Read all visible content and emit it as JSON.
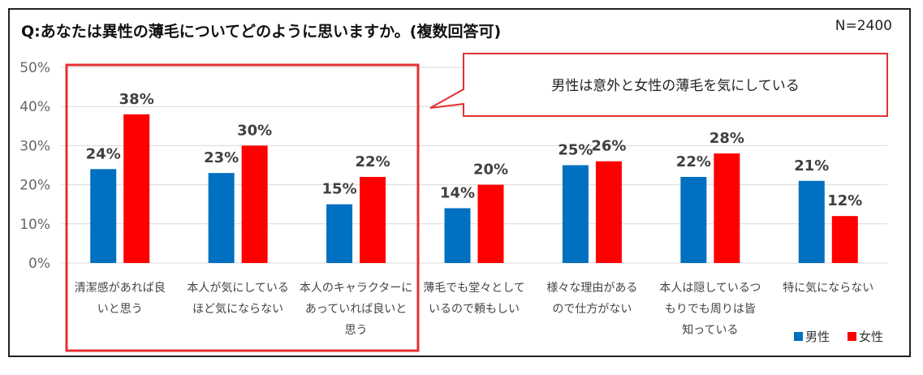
{
  "header": {
    "title": "Q:あなたは異性の薄毛についてどのように思いますか。(複数回答可)",
    "sample_size": "N=2400"
  },
  "callout": {
    "text": "男性は意外と女性の薄毛を気にしている"
  },
  "colors": {
    "male": "#0070C0",
    "female": "#FF0000",
    "highlight_box": "#E53030",
    "grid": "#d9d9d9"
  },
  "chart_data": {
    "type": "bar",
    "ylim": [
      0,
      50
    ],
    "yticks": [
      "0%",
      "10%",
      "20%",
      "30%",
      "40%",
      "50%"
    ],
    "grid": true,
    "legend_position": "bottom-right",
    "categories": [
      [
        "清潔感があれば良",
        "いと思う"
      ],
      [
        "本人が気にしている",
        "ほど気にならない"
      ],
      [
        "本人のキャラクターに",
        "あっていれば良いと",
        "思う"
      ],
      [
        "薄毛でも堂々として",
        "いるので頼もしい"
      ],
      [
        "様々な理由がある",
        "ので仕方がない"
      ],
      [
        "本人は隠しているつ",
        "もりでも周りは皆",
        "知っている"
      ],
      [
        "特に気にならない"
      ]
    ],
    "series": [
      {
        "name": "男性",
        "values": [
          24,
          23,
          15,
          14,
          25,
          22,
          21
        ],
        "labels": [
          "24%",
          "23%",
          "15%",
          "14%",
          "25%",
          "22%",
          "21%"
        ]
      },
      {
        "name": "女性",
        "values": [
          38,
          30,
          22,
          20,
          26,
          28,
          12
        ],
        "labels": [
          "38%",
          "30%",
          "22%",
          "20%",
          "26%",
          "28%",
          "12%"
        ]
      }
    ]
  }
}
